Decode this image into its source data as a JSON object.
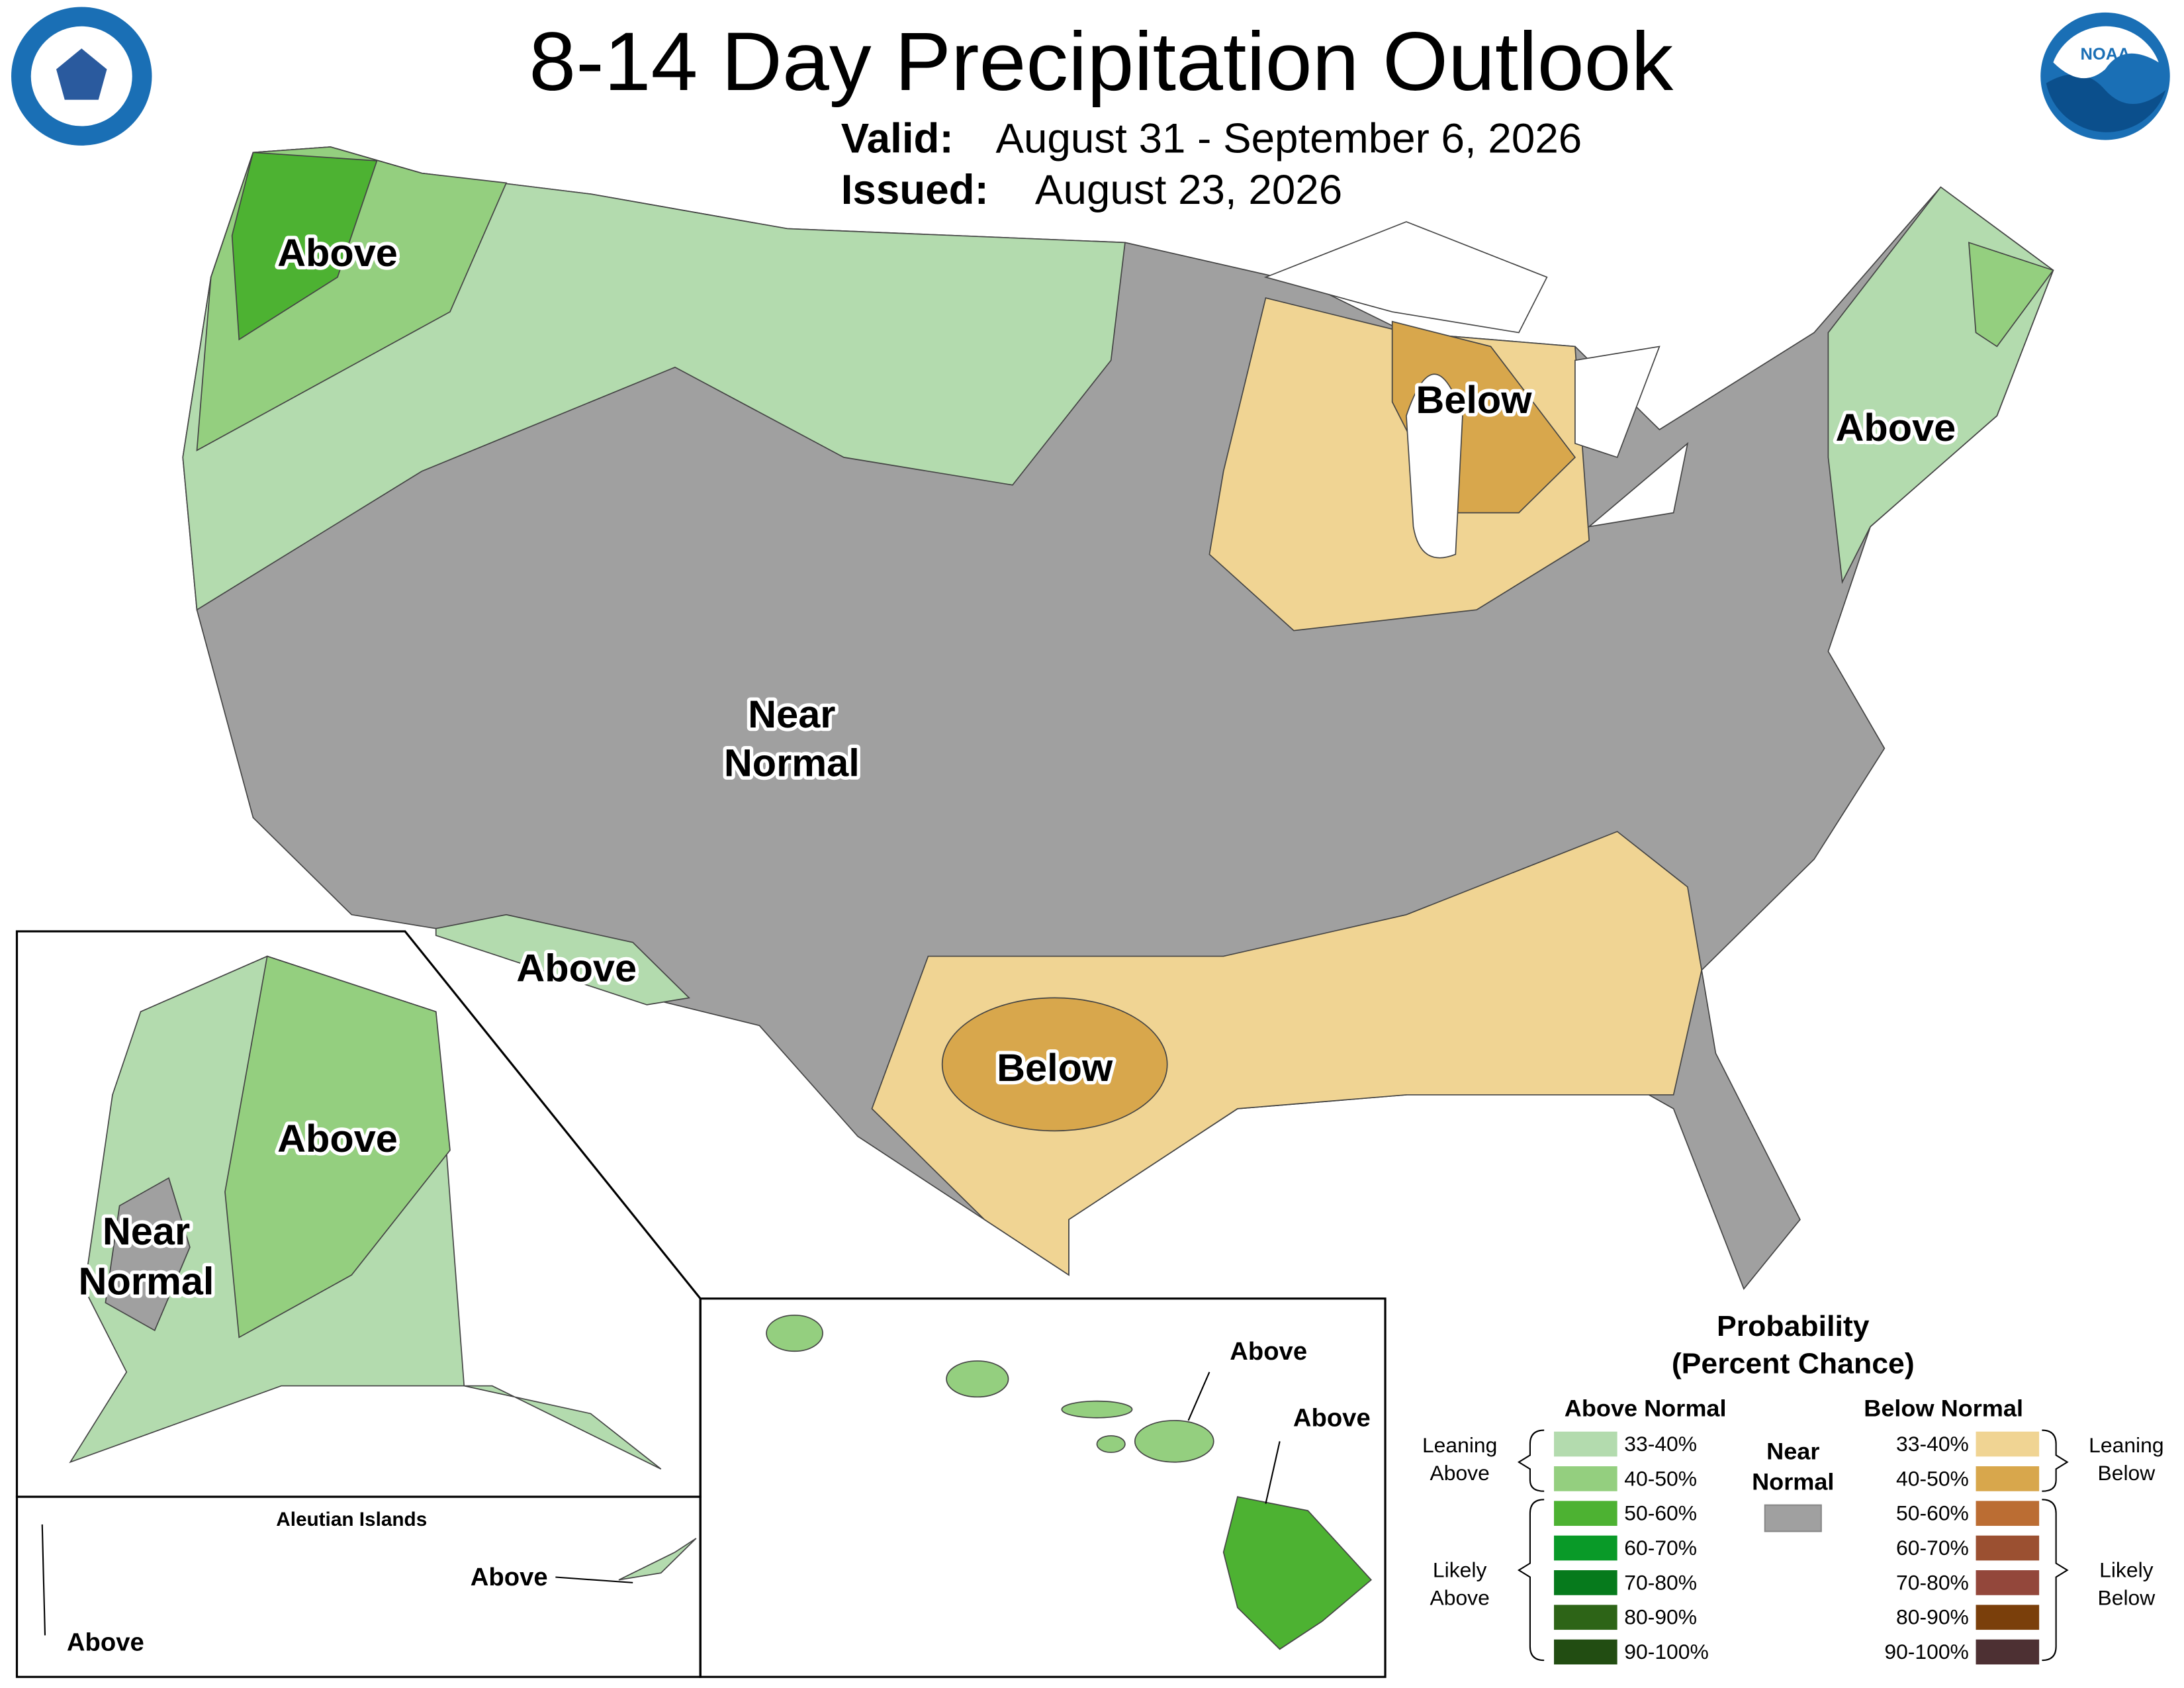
{
  "header": {
    "title": "8-14 Day Precipitation Outlook",
    "valid_label": "Valid:",
    "valid": "August 31 - September 6, 2026",
    "issued_label": "Issued:",
    "issued": "August 23, 2026"
  },
  "logos": {
    "noaa": "NOAA"
  },
  "map_labels": [
    "Above",
    "Below",
    "Above",
    "Near",
    "Normal",
    "Above",
    "Below",
    "Above",
    "Near",
    "Normal",
    "Above",
    "Above",
    "Above",
    "Above"
  ],
  "inset_titles": {
    "aleutian": "Aleutian Islands"
  },
  "legend": {
    "title": "Probability",
    "subtitle": "(Percent Chance)",
    "above_heading": "Above Normal",
    "below_heading": "Below Normal",
    "near_label": [
      "Near",
      "Normal"
    ],
    "near_color": "#a0a0a0",
    "leaning_above": [
      "Leaning",
      "Above"
    ],
    "likely_above": [
      "Likely",
      "Above"
    ],
    "leaning_below": [
      "Leaning",
      "Below"
    ],
    "likely_below": [
      "Likely",
      "Below"
    ],
    "above_levels": [
      {
        "range": "33-40%",
        "color": "#b3dbae"
      },
      {
        "range": "40-50%",
        "color": "#94cf7f"
      },
      {
        "range": "50-60%",
        "color": "#4db232"
      },
      {
        "range": "60-70%",
        "color": "#099a28"
      },
      {
        "range": "70-80%",
        "color": "#067a1c"
      },
      {
        "range": "80-90%",
        "color": "#2d6417"
      },
      {
        "range": "90-100%",
        "color": "#224d12"
      }
    ],
    "below_levels": [
      {
        "range": "33-40%",
        "color": "#f0d493"
      },
      {
        "range": "40-50%",
        "color": "#d8a74c"
      },
      {
        "range": "50-60%",
        "color": "#bb6d33"
      },
      {
        "range": "60-70%",
        "color": "#9b5031"
      },
      {
        "range": "70-80%",
        "color": "#93473b"
      },
      {
        "range": "80-90%",
        "color": "#7a3f0b"
      },
      {
        "range": "90-100%",
        "color": "#4d3033"
      }
    ]
  }
}
